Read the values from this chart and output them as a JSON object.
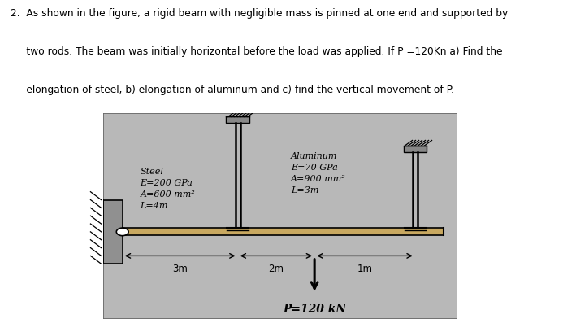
{
  "page_bg": "#ffffff",
  "diagram_bg": "#b8b8b8",
  "beam_color": "#c8a860",
  "wall_color": "#909090",
  "rod_color": "#000000",
  "text_line1": "2.  As shown in the figure, a rigid beam with negligible mass is pinned at one end and supported by",
  "text_line2": "     two rods. The beam was initially horizontal before the load was applied. If P =120Kn a) Find the",
  "text_line3": "     elongation of steel, b) elongation of aluminum and c) find the vertical movement of P.",
  "steel_label": "Steel\nE=200 GPa\nA=600 mm²\nL=4m",
  "aluminum_label": "Aluminum\nE=70 GPa\nA=900 mm²\nL=3m",
  "load_label": "P=120 kN",
  "dim_3m": "3m",
  "dim_2m": "2m",
  "dim_1m": "1m"
}
